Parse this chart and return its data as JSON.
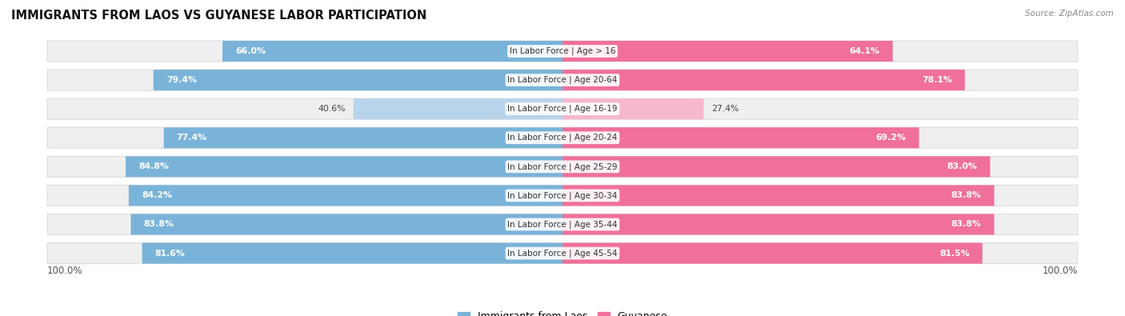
{
  "title": "IMMIGRANTS FROM LAOS VS GUYANESE LABOR PARTICIPATION",
  "source": "Source: ZipAtlas.com",
  "categories": [
    "In Labor Force | Age > 16",
    "In Labor Force | Age 20-64",
    "In Labor Force | Age 16-19",
    "In Labor Force | Age 20-24",
    "In Labor Force | Age 25-29",
    "In Labor Force | Age 30-34",
    "In Labor Force | Age 35-44",
    "In Labor Force | Age 45-54"
  ],
  "laos_values": [
    66.0,
    79.4,
    40.6,
    77.4,
    84.8,
    84.2,
    83.8,
    81.6
  ],
  "guyanese_values": [
    64.1,
    78.1,
    27.4,
    69.2,
    83.0,
    83.8,
    83.8,
    81.5
  ],
  "laos_color": "#7ab3d9",
  "laos_color_light": "#b8d4ea",
  "guyanese_color": "#f07099",
  "guyanese_color_light": "#f5b8cc",
  "row_bg": "#efefef",
  "row_border": "#dddddd",
  "max_value": 100.0,
  "label_fontsize": 7.8,
  "cat_fontsize": 7.5,
  "title_fontsize": 10.5,
  "legend_fontsize": 9,
  "axis_label_fontsize": 8.5
}
